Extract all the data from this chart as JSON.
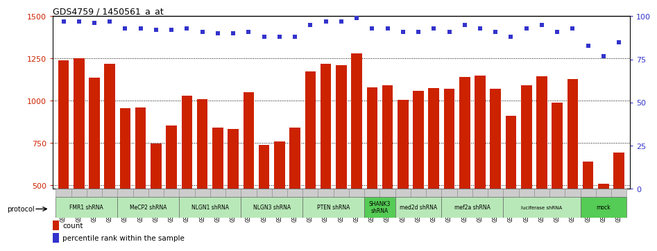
{
  "title": "GDS4759 / 1450561_a_at",
  "samples": [
    "GSM1145756",
    "GSM1145757",
    "GSM1145758",
    "GSM1145759",
    "GSM1145764",
    "GSM1145765",
    "GSM1145766",
    "GSM1145767",
    "GSM1145768",
    "GSM1145769",
    "GSM1145770",
    "GSM1145771",
    "GSM1145772",
    "GSM1145773",
    "GSM1145774",
    "GSM1145775",
    "GSM1145776",
    "GSM1145777",
    "GSM1145778",
    "GSM1145779",
    "GSM1145780",
    "GSM1145781",
    "GSM1145782",
    "GSM1145783",
    "GSM1145784",
    "GSM1145785",
    "GSM1145786",
    "GSM1145787",
    "GSM1145788",
    "GSM1145789",
    "GSM1145760",
    "GSM1145761",
    "GSM1145762",
    "GSM1145763",
    "GSM1145942",
    "GSM1145943",
    "GSM1145944"
  ],
  "counts": [
    1240,
    1250,
    1135,
    1220,
    955,
    960,
    748,
    855,
    1030,
    1010,
    840,
    832,
    1050,
    740,
    760,
    840,
    1175,
    1220,
    1210,
    1280,
    1080,
    1090,
    1005,
    1060,
    1075,
    1070,
    1140,
    1150,
    1070,
    910,
    1090,
    1145,
    990,
    1130,
    640,
    510,
    695
  ],
  "percentiles": [
    97,
    97,
    96,
    97,
    93,
    93,
    92,
    92,
    93,
    91,
    90,
    90,
    91,
    88,
    88,
    88,
    95,
    97,
    97,
    99,
    93,
    93,
    91,
    91,
    93,
    91,
    95,
    93,
    91,
    88,
    93,
    95,
    91,
    93,
    83,
    77,
    85
  ],
  "protocols": [
    {
      "label": "FMR1 shRNA",
      "start": 0,
      "end": 4,
      "color": "#b8e8b8"
    },
    {
      "label": "MeCP2 shRNA",
      "start": 4,
      "end": 8,
      "color": "#b8e8b8"
    },
    {
      "label": "NLGN1 shRNA",
      "start": 8,
      "end": 12,
      "color": "#b8e8b8"
    },
    {
      "label": "NLGN3 shRNA",
      "start": 12,
      "end": 16,
      "color": "#b8e8b8"
    },
    {
      "label": "PTEN shRNA",
      "start": 16,
      "end": 20,
      "color": "#b8e8b8"
    },
    {
      "label": "SHANK3\nshRNA",
      "start": 20,
      "end": 22,
      "color": "#55cc55"
    },
    {
      "label": "med2d shRNA",
      "start": 22,
      "end": 25,
      "color": "#b8e8b8"
    },
    {
      "label": "mef2a shRNA",
      "start": 25,
      "end": 29,
      "color": "#b8e8b8"
    },
    {
      "label": "luciferase shRNA",
      "start": 29,
      "end": 34,
      "color": "#b8e8b8"
    },
    {
      "label": "mock",
      "start": 34,
      "end": 37,
      "color": "#55cc55"
    }
  ],
  "bar_color": "#cc2200",
  "dot_color": "#3333cc",
  "ylim_left": [
    480,
    1500
  ],
  "ylim_right": [
    0,
    100
  ],
  "yticks_left": [
    500,
    750,
    1000,
    1250,
    1500
  ],
  "yticks_right": [
    0,
    25,
    50,
    75,
    100
  ]
}
